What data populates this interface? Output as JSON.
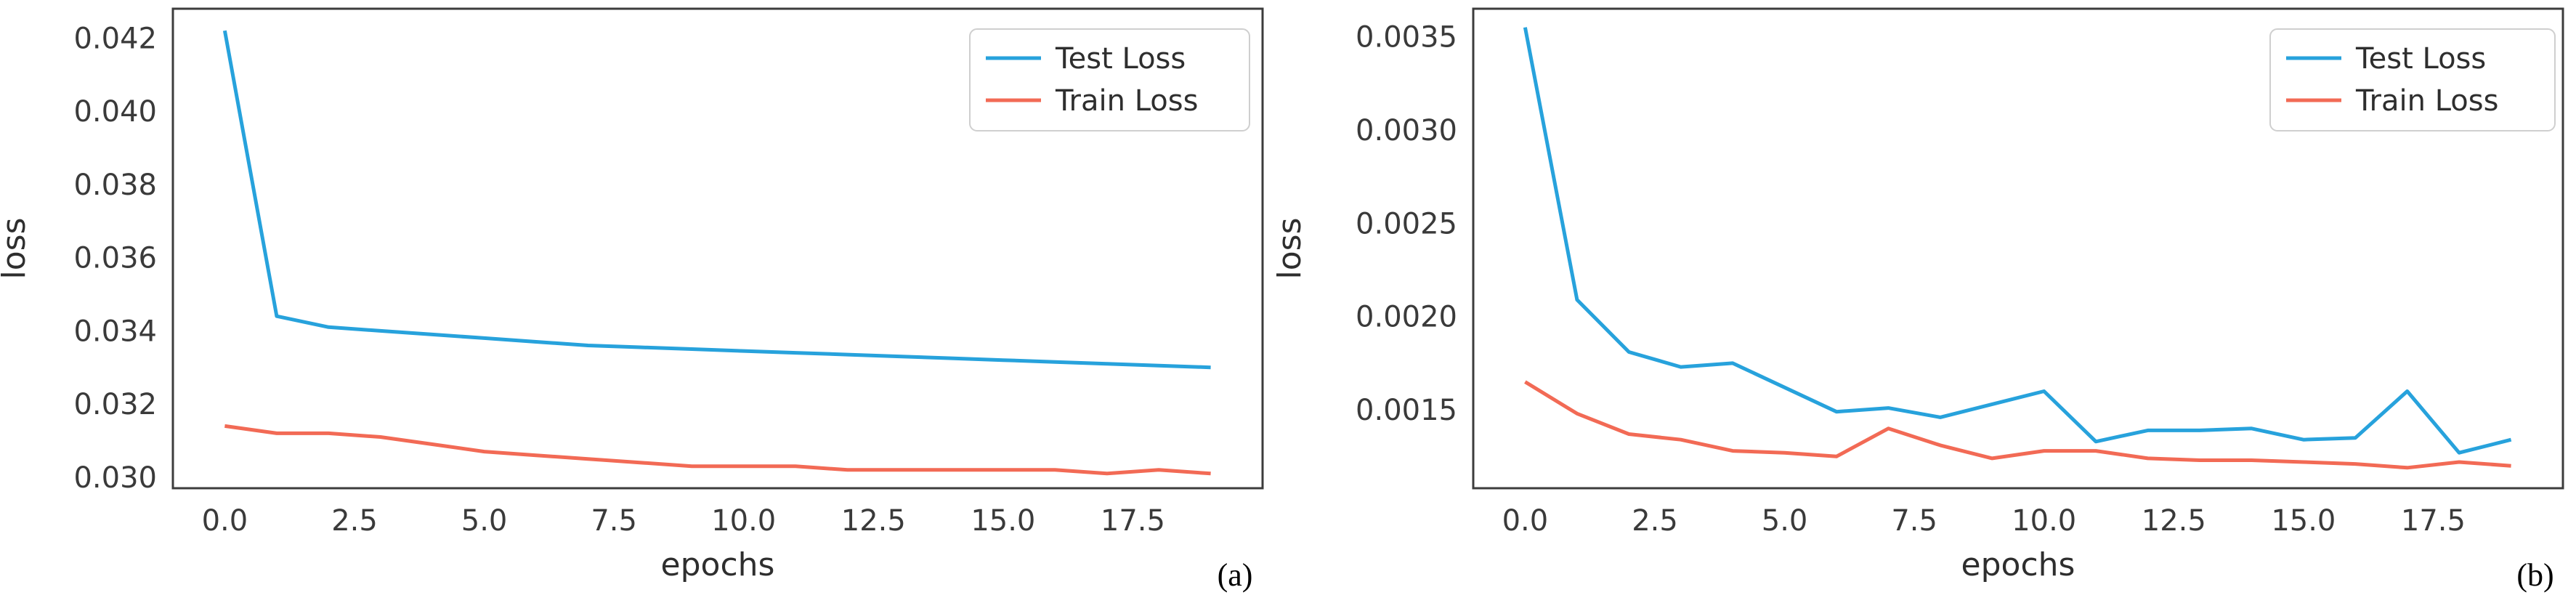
{
  "chart_data": [
    {
      "type": "line",
      "panel_label": "(a)",
      "xlabel": "epochs",
      "ylabel": "loss",
      "xlim": [
        -1.0,
        20.0
      ],
      "ylim": [
        0.0297,
        0.0428
      ],
      "x_ticks": [
        "0.0",
        "2.5",
        "5.0",
        "7.5",
        "10.0",
        "12.5",
        "15.0",
        "17.5"
      ],
      "y_ticks": [
        "0.030",
        "0.032",
        "0.034",
        "0.036",
        "0.038",
        "0.040",
        "0.042"
      ],
      "legend_position": "top-right",
      "grid": false,
      "x": [
        0,
        1,
        2,
        3,
        4,
        5,
        6,
        7,
        8,
        9,
        10,
        11,
        12,
        13,
        14,
        15,
        16,
        17,
        18,
        19
      ],
      "series": [
        {
          "name": "Test Loss",
          "color": "#27a2dc",
          "values": [
            0.0422,
            0.0344,
            0.0341,
            0.034,
            0.0339,
            0.0338,
            0.0337,
            0.0336,
            0.03355,
            0.0335,
            0.03345,
            0.0334,
            0.03335,
            0.0333,
            0.03325,
            0.0332,
            0.03315,
            0.0331,
            0.03305,
            0.033
          ]
        },
        {
          "name": "Train Loss",
          "color": "#f26a55",
          "values": [
            0.0314,
            0.0312,
            0.0312,
            0.0311,
            0.0309,
            0.0307,
            0.0306,
            0.0305,
            0.0304,
            0.0303,
            0.0303,
            0.0303,
            0.0302,
            0.0302,
            0.0302,
            0.0302,
            0.0302,
            0.0301,
            0.0302,
            0.0301
          ]
        }
      ]
    },
    {
      "type": "line",
      "panel_label": "(b)",
      "xlabel": "epochs",
      "ylabel": "loss",
      "xlim": [
        -1.0,
        20.0
      ],
      "ylim": [
        0.00108,
        0.00365
      ],
      "x_ticks": [
        "0.0",
        "2.5",
        "5.0",
        "7.5",
        "10.0",
        "12.5",
        "15.0",
        "17.5"
      ],
      "y_ticks": [
        "0.0015",
        "0.0020",
        "0.0025",
        "0.0030",
        "0.0035"
      ],
      "legend_position": "top-right",
      "grid": false,
      "x": [
        0,
        1,
        2,
        3,
        4,
        5,
        6,
        7,
        8,
        9,
        10,
        11,
        12,
        13,
        14,
        15,
        16,
        17,
        18,
        19
      ],
      "series": [
        {
          "name": "Test Loss",
          "color": "#27a2dc",
          "values": [
            0.00355,
            0.00209,
            0.00181,
            0.00173,
            0.00175,
            0.00162,
            0.00149,
            0.00151,
            0.00146,
            0.00153,
            0.0016,
            0.00133,
            0.00139,
            0.00139,
            0.0014,
            0.00134,
            0.00135,
            0.0016,
            0.00127,
            0.00134
          ]
        },
        {
          "name": "Train Loss",
          "color": "#f26a55",
          "values": [
            0.00165,
            0.00148,
            0.00137,
            0.00134,
            0.00128,
            0.00127,
            0.00125,
            0.0014,
            0.00131,
            0.00124,
            0.00128,
            0.00128,
            0.00124,
            0.00123,
            0.00123,
            0.00122,
            0.00121,
            0.00119,
            0.00122,
            0.0012
          ]
        }
      ]
    }
  ]
}
